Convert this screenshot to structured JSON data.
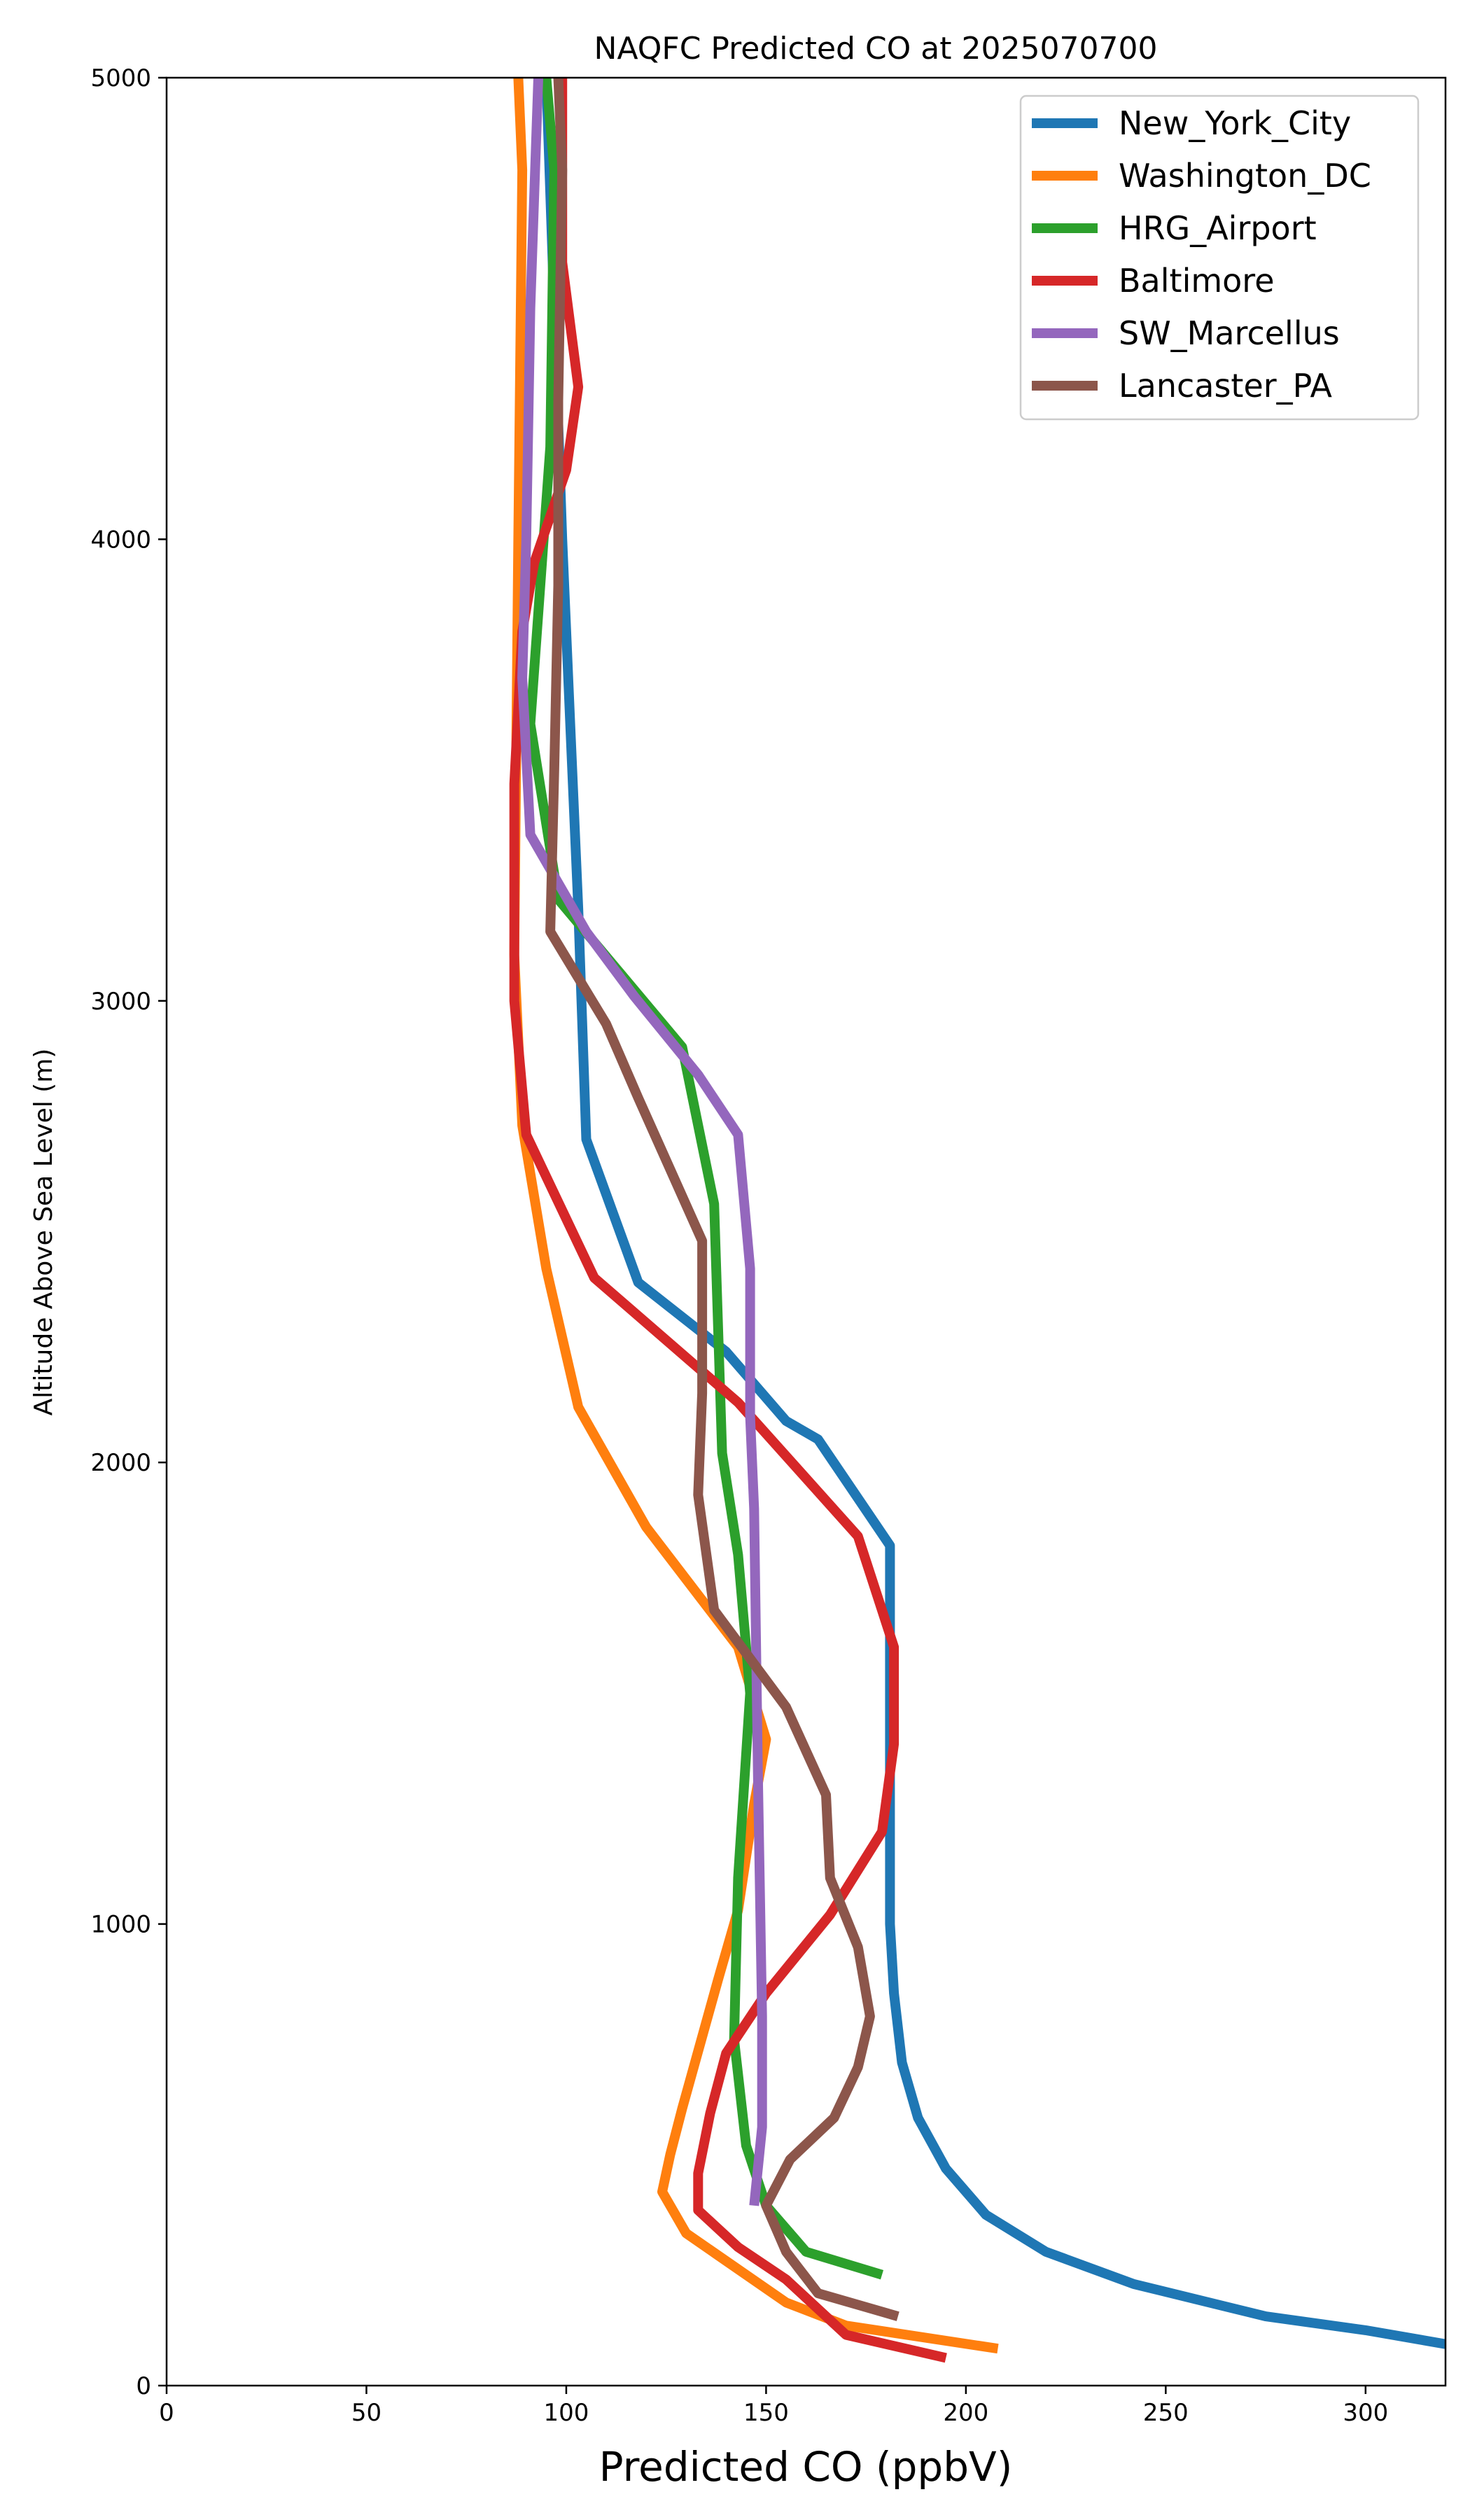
{
  "chart_data": {
    "type": "line",
    "title": "NAQFC Predicted CO at 2025070700",
    "xlabel": "Predicted CO (ppbV)",
    "ylabel": "Altitude Above Sea Level (m)",
    "xlim": [
      0,
      320
    ],
    "ylim": [
      0,
      5000
    ],
    "xticks": [
      0,
      50,
      100,
      150,
      200,
      250,
      300
    ],
    "yticks": [
      0,
      1000,
      2000,
      3000,
      4000,
      5000
    ],
    "grid": false,
    "legend_position": "top-right",
    "series": [
      {
        "name": "New_York_City",
        "color": "#1f77b4",
        "points": [
          [
            320,
            90
          ],
          [
            300,
            120
          ],
          [
            275,
            150
          ],
          [
            242,
            220
          ],
          [
            220,
            290
          ],
          [
            205,
            370
          ],
          [
            195,
            470
          ],
          [
            188,
            580
          ],
          [
            184,
            700
          ],
          [
            182,
            850
          ],
          [
            181,
            1000
          ],
          [
            181,
            1300
          ],
          [
            181,
            1820
          ],
          [
            163,
            2050
          ],
          [
            155,
            2090
          ],
          [
            140,
            2240
          ],
          [
            118,
            2390
          ],
          [
            105,
            2700
          ],
          [
            103,
            3200
          ],
          [
            101,
            3600
          ],
          [
            99,
            4000
          ],
          [
            95,
            5000
          ]
        ]
      },
      {
        "name": "Washington_DC",
        "color": "#ff7f0e",
        "points": [
          [
            208,
            80
          ],
          [
            170,
            130
          ],
          [
            155,
            180
          ],
          [
            130,
            330
          ],
          [
            124,
            420
          ],
          [
            126,
            500
          ],
          [
            129,
            600
          ],
          [
            138,
            880
          ],
          [
            143,
            1030
          ],
          [
            147,
            1260
          ],
          [
            150,
            1400
          ],
          [
            143,
            1600
          ],
          [
            120,
            1860
          ],
          [
            103,
            2120
          ],
          [
            95,
            2420
          ],
          [
            89,
            2730
          ],
          [
            87,
            3100
          ],
          [
            88,
            4000
          ],
          [
            89,
            4800
          ],
          [
            88,
            5000
          ]
        ]
      },
      {
        "name": "HRG_Airport",
        "color": "#2ca02c",
        "points": [
          [
            179,
            240
          ],
          [
            160,
            290
          ],
          [
            150,
            390
          ],
          [
            145,
            520
          ],
          [
            142,
            750
          ],
          [
            143,
            1100
          ],
          [
            146,
            1500
          ],
          [
            143,
            1800
          ],
          [
            139,
            2020
          ],
          [
            137,
            2560
          ],
          [
            129,
            2900
          ],
          [
            98,
            3220
          ],
          [
            91,
            3600
          ],
          [
            96,
            4200
          ],
          [
            97,
            4800
          ],
          [
            95,
            5000
          ]
        ]
      },
      {
        "name": "Baltimore",
        "color": "#d62728",
        "points": [
          [
            195,
            60
          ],
          [
            170,
            110
          ],
          [
            155,
            230
          ],
          [
            143,
            300
          ],
          [
            133,
            380
          ],
          [
            133,
            460
          ],
          [
            136,
            590
          ],
          [
            140,
            720
          ],
          [
            150,
            850
          ],
          [
            166,
            1020
          ],
          [
            179,
            1200
          ],
          [
            182,
            1390
          ],
          [
            182,
            1600
          ],
          [
            173,
            1840
          ],
          [
            143,
            2130
          ],
          [
            107,
            2400
          ],
          [
            90,
            2710
          ],
          [
            87,
            3000
          ],
          [
            87,
            3470
          ],
          [
            89,
            3800
          ],
          [
            92,
            3950
          ],
          [
            100,
            4150
          ],
          [
            103,
            4330
          ],
          [
            99,
            4600
          ],
          [
            99,
            5000
          ]
        ]
      },
      {
        "name": "SW_Marcellus",
        "color": "#9467bd",
        "points": [
          [
            147,
            390
          ],
          [
            149,
            560
          ],
          [
            149,
            800
          ],
          [
            148,
            1300
          ],
          [
            147,
            1900
          ],
          [
            146,
            2100
          ],
          [
            146,
            2420
          ],
          [
            143,
            2710
          ],
          [
            133,
            2840
          ],
          [
            117,
            3010
          ],
          [
            105,
            3150
          ],
          [
            91,
            3360
          ],
          [
            89,
            3700
          ],
          [
            90,
            4000
          ],
          [
            91,
            4500
          ],
          [
            93,
            5000
          ]
        ]
      },
      {
        "name": "Lancaster_PA",
        "color": "#8c564b",
        "points": [
          [
            183,
            150
          ],
          [
            163,
            200
          ],
          [
            155,
            290
          ],
          [
            150,
            390
          ],
          [
            156,
            490
          ],
          [
            167,
            580
          ],
          [
            173,
            690
          ],
          [
            176,
            800
          ],
          [
            173,
            950
          ],
          [
            166,
            1100
          ],
          [
            165,
            1280
          ],
          [
            155,
            1470
          ],
          [
            137,
            1680
          ],
          [
            133,
            1930
          ],
          [
            134,
            2150
          ],
          [
            134,
            2480
          ],
          [
            118,
            2790
          ],
          [
            110,
            2950
          ],
          [
            96,
            3150
          ],
          [
            97,
            3500
          ],
          [
            98,
            3900
          ],
          [
            98,
            4300
          ],
          [
            99,
            4800
          ],
          [
            98,
            5000
          ]
        ]
      }
    ]
  }
}
